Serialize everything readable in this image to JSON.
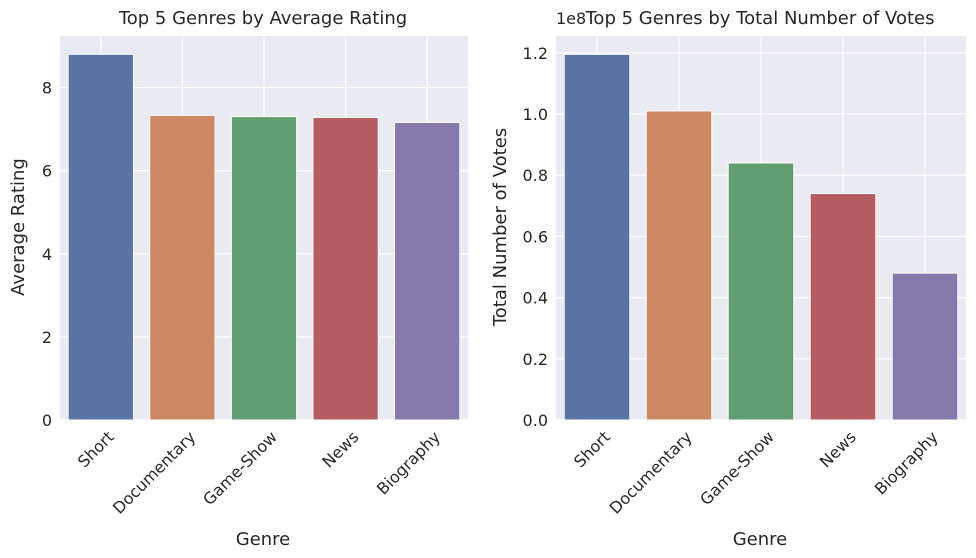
{
  "chart_data": [
    {
      "type": "bar",
      "title": "Top 5 Genres by Average Rating",
      "xlabel": "Genre",
      "ylabel": "Average Rating",
      "categories": [
        "Short",
        "Documentary",
        "Game-Show",
        "News",
        "Biography"
      ],
      "values": [
        8.8,
        7.33,
        7.3,
        7.28,
        7.16
      ],
      "ylim": [
        0,
        9.24
      ],
      "yticks": [
        0,
        2,
        4,
        6,
        8
      ],
      "ytick_labels": [
        "0",
        "2",
        "4",
        "6",
        "8"
      ],
      "y_offset_label": "",
      "grid": true,
      "bar_colors": [
        "#5975a4",
        "#cc8963",
        "#5f9e6e",
        "#b55d60",
        "#857aab"
      ]
    },
    {
      "type": "bar",
      "title": "Top 5 Genres by Total Number of Votes",
      "xlabel": "Genre",
      "ylabel": "Total Number of Votes",
      "categories": [
        "Short",
        "Documentary",
        "Game-Show",
        "News",
        "Biography"
      ],
      "values": [
        119500000,
        101000000,
        84000000,
        74000000,
        48000000
      ],
      "ylim": [
        0,
        125500000
      ],
      "yticks": [
        0,
        20000000,
        40000000,
        60000000,
        80000000,
        100000000,
        120000000
      ],
      "ytick_labels": [
        "0.0",
        "0.2",
        "0.4",
        "0.6",
        "0.8",
        "1.0",
        "1.2"
      ],
      "y_offset_label": "1e8",
      "grid": true,
      "bar_colors": [
        "#5975a4",
        "#cc8963",
        "#5f9e6e",
        "#b55d60",
        "#857aab"
      ]
    }
  ],
  "style": {
    "plot_background": "#eaeaf2",
    "grid_color": "#ffffff",
    "text_color": "#262626"
  }
}
